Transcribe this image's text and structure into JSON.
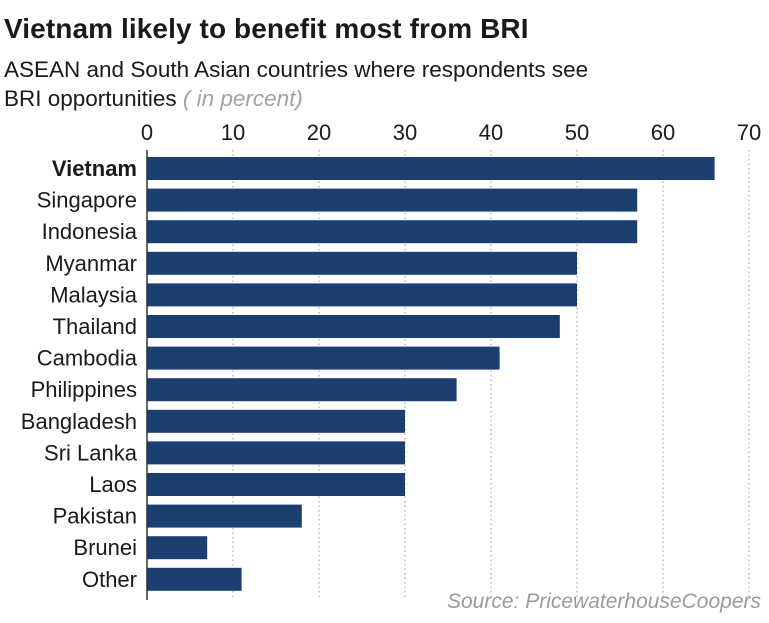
{
  "header": {
    "title": "Vietnam likely to benefit most from BRI",
    "subtitle_line1": "ASEAN and South Asian countries where respondents see",
    "subtitle_line2": "BRI opportunities",
    "unit": "( in percent)"
  },
  "source": "Source: PricewaterhouseCoopers",
  "colors": {
    "bar": "#1b3f6e",
    "highlight_label": "#000000",
    "grid": "#9a9a9a",
    "axis": "#333333"
  },
  "chart_data": {
    "type": "bar",
    "orientation": "horizontal",
    "title": "Vietnam likely to benefit most from BRI",
    "subtitle": "ASEAN and South Asian countries where respondents see BRI opportunities",
    "unit": "( in percent)",
    "xlim": [
      0,
      70
    ],
    "xticks": [
      0,
      10,
      20,
      30,
      40,
      50,
      60,
      70
    ],
    "tick_labels": [
      "0",
      "10",
      "20",
      "30",
      "40",
      "50",
      "60",
      "70"
    ],
    "axis_position": "top",
    "grid": "dotted vertical",
    "highlight": "Vietnam",
    "categories": [
      "Vietnam",
      "Singapore",
      "Indonesia",
      "Myanmar",
      "Malaysia",
      "Thailand",
      "Cambodia",
      "Philippines",
      "Bangladesh",
      "Sri Lanka",
      "Laos",
      "Pakistan",
      "Brunei",
      "Other"
    ],
    "values": [
      66,
      57,
      57,
      50,
      50,
      48,
      41,
      36,
      30,
      30,
      30,
      18,
      7,
      11
    ]
  }
}
